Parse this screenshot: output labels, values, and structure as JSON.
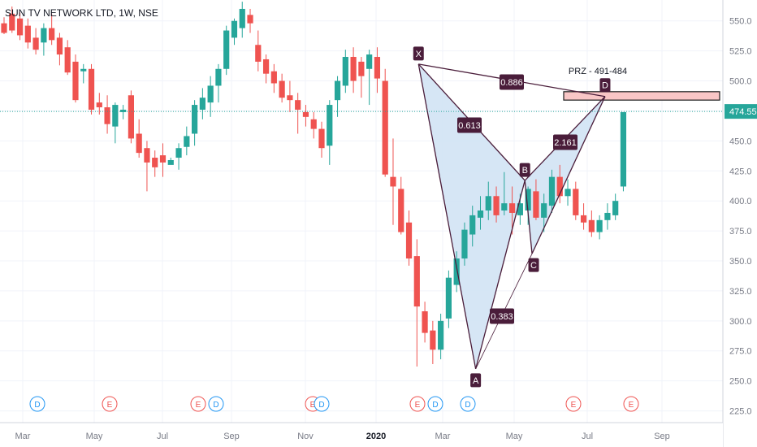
{
  "header": {
    "symbol_title": "SUN TV NETWORK LTD, 1W, NSE"
  },
  "colors": {
    "up": "#26a69a",
    "down": "#ef5350",
    "pattern_fill": "#cfe2f3",
    "pattern_line": "#4a1d3a",
    "label_bg": "#4a1d3a",
    "prz_fill": "#f9c6c6",
    "price_line": "#26a69a",
    "grid": "#f0f3fa",
    "axis_text": "#787b86",
    "dividend": "#2196f3",
    "earnings": "#ef5350"
  },
  "chart_data": {
    "type": "candlestick",
    "y_axis": {
      "range": [
        222,
        562
      ],
      "ticks": [
        550,
        525,
        500,
        475,
        450,
        425,
        400,
        375,
        350,
        325,
        300,
        275,
        250,
        225
      ]
    },
    "x_axis": {
      "labels": [
        "Mar",
        "May",
        "Jul",
        "Sep",
        "Nov",
        "2020",
        "Mar",
        "May",
        "Jul",
        "Sep"
      ]
    },
    "last_price": {
      "value": 474.55,
      "label": "474.55"
    },
    "candles_ohlc": [
      [
        548,
        553,
        539,
        540
      ],
      [
        556,
        562,
        540,
        542
      ],
      [
        552,
        557,
        534,
        538
      ],
      [
        546,
        552,
        527,
        532
      ],
      [
        536,
        544,
        522,
        526
      ],
      [
        532,
        548,
        521,
        544
      ],
      [
        544,
        556,
        530,
        534
      ],
      [
        536,
        540,
        513,
        522
      ],
      [
        528,
        534,
        505,
        507
      ],
      [
        516,
        522,
        482,
        484
      ],
      [
        508,
        514,
        498,
        510
      ],
      [
        510,
        514,
        472,
        476
      ],
      [
        482,
        490,
        472,
        478
      ],
      [
        478,
        488,
        456,
        464
      ],
      [
        462,
        482,
        448,
        480
      ],
      [
        474,
        480,
        468,
        476
      ],
      [
        488,
        492,
        448,
        452
      ],
      [
        456,
        468,
        436,
        440
      ],
      [
        444,
        450,
        408,
        432
      ],
      [
        436,
        442,
        420,
        428
      ],
      [
        438,
        448,
        420,
        432
      ],
      [
        430,
        436,
        432,
        434
      ],
      [
        436,
        448,
        426,
        444
      ],
      [
        445,
        462,
        438,
        454
      ],
      [
        456,
        484,
        446,
        480
      ],
      [
        476,
        494,
        468,
        486
      ],
      [
        482,
        504,
        470,
        496
      ],
      [
        496,
        514,
        482,
        510
      ],
      [
        510,
        546,
        505,
        542
      ],
      [
        536,
        552,
        530,
        550
      ],
      [
        544,
        566,
        536,
        560
      ],
      [
        555,
        560,
        540,
        548
      ],
      [
        530,
        542,
        508,
        516
      ],
      [
        518,
        522,
        498,
        506
      ],
      [
        508,
        514,
        490,
        498
      ],
      [
        500,
        506,
        482,
        486
      ],
      [
        488,
        500,
        474,
        484
      ],
      [
        484,
        490,
        456,
        476
      ],
      [
        474,
        480,
        462,
        470
      ],
      [
        468,
        474,
        452,
        460
      ],
      [
        460,
        466,
        436,
        444
      ],
      [
        446,
        484,
        430,
        480
      ],
      [
        484,
        504,
        470,
        500
      ],
      [
        496,
        526,
        490,
        520
      ],
      [
        520,
        528,
        490,
        500
      ],
      [
        516,
        520,
        486,
        504
      ],
      [
        510,
        526,
        480,
        522
      ],
      [
        520,
        528,
        490,
        502
      ],
      [
        500,
        510,
        420,
        422
      ],
      [
        420,
        452,
        380,
        412
      ],
      [
        410,
        420,
        372,
        374
      ],
      [
        382,
        392,
        346,
        352
      ],
      [
        354,
        368,
        262,
        312
      ],
      [
        308,
        316,
        282,
        290
      ],
      [
        292,
        300,
        264,
        276
      ],
      [
        276,
        306,
        268,
        300
      ],
      [
        302,
        342,
        294,
        336
      ],
      [
        330,
        358,
        324,
        352
      ],
      [
        352,
        382,
        346,
        376
      ],
      [
        372,
        396,
        362,
        388
      ],
      [
        386,
        404,
        376,
        392
      ],
      [
        392,
        416,
        384,
        404
      ],
      [
        404,
        412,
        382,
        388
      ],
      [
        392,
        424,
        388,
        398
      ],
      [
        398,
        412,
        372,
        390
      ],
      [
        388,
        406,
        380,
        398
      ],
      [
        392,
        412,
        380,
        410
      ],
      [
        408,
        418,
        384,
        386
      ],
      [
        386,
        406,
        374,
        398
      ],
      [
        396,
        426,
        390,
        420
      ],
      [
        420,
        430,
        398,
        404
      ],
      [
        404,
        418,
        396,
        410
      ],
      [
        410,
        416,
        384,
        388
      ],
      [
        388,
        398,
        376,
        382
      ],
      [
        384,
        392,
        370,
        374
      ],
      [
        374,
        388,
        368,
        384
      ],
      [
        384,
        398,
        376,
        390
      ],
      [
        388,
        406,
        384,
        400
      ],
      [
        412,
        474,
        408,
        474
      ]
    ],
    "harmonic_pattern": {
      "points": [
        {
          "label": "X",
          "value": 514
        },
        {
          "label": "A",
          "value": 260
        },
        {
          "label": "B",
          "value": 417
        },
        {
          "label": "C",
          "value": 356
        },
        {
          "label": "D",
          "value": 487
        }
      ],
      "ratios": [
        "0.613",
        "0.383",
        "2.161",
        "0.886"
      ],
      "prz": {
        "label": "PRZ - 491-484",
        "range": [
          484,
          491
        ]
      }
    },
    "events": [
      {
        "type": "D",
        "label": "D"
      },
      {
        "type": "E",
        "label": "E"
      },
      {
        "type": "E",
        "label": "E"
      },
      {
        "type": "D",
        "label": "D"
      },
      {
        "type": "E",
        "label": "E"
      },
      {
        "type": "D",
        "label": "D"
      },
      {
        "type": "E",
        "label": "E"
      },
      {
        "type": "D",
        "label": "D"
      },
      {
        "type": "D",
        "label": "D"
      },
      {
        "type": "E",
        "label": "E"
      },
      {
        "type": "E",
        "label": "E"
      }
    ]
  }
}
